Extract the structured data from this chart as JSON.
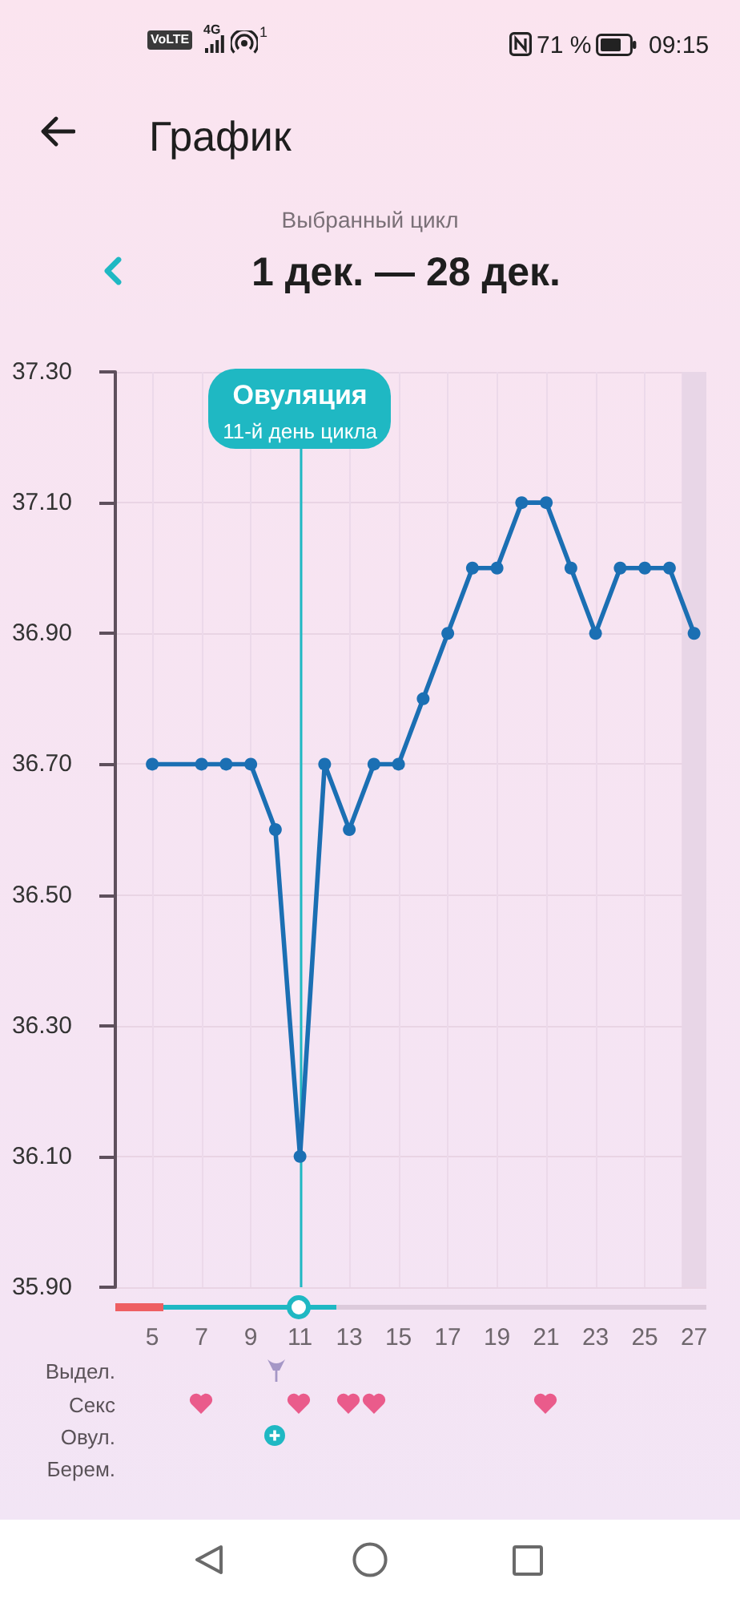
{
  "chart_data": {
    "type": "line",
    "title": "График",
    "subtitle": "Выбранный цикл",
    "annotations": [
      "VoLTE",
      "4G",
      "1",
      "71 %",
      "09:15",
      "1 дек. — 28 дек.",
      {
        "text": "11-й день цикла",
        "x": 11,
        "y": 37.21
      },
      "Выдел.",
      "Секс",
      "Овул.",
      "Берем."
    ],
    "x": [
      5,
      7,
      8,
      9,
      10,
      11,
      12,
      13,
      14,
      15,
      16,
      17,
      18,
      19,
      20,
      21,
      22,
      23,
      24,
      25,
      26,
      27
    ],
    "series": [
      {
        "color": "#1b6fb3",
        "values": [
          36.7,
          36.7,
          36.7,
          36.7,
          36.6,
          36.1,
          36.7,
          36.6,
          36.7,
          36.7,
          36.8,
          36.9,
          37.0,
          37.0,
          37.1,
          37.1,
          37.0,
          36.9,
          37.0,
          37.0,
          37.0,
          36.9
        ]
      }
    ],
    "xlim": [
      3.5,
      27.5
    ],
    "xticks": [
      5,
      7,
      9,
      11,
      13,
      15,
      17,
      19,
      21,
      23,
      25,
      27
    ],
    "ylim": [
      35.9,
      37.3
    ],
    "yticks": [
      {
        "value": 35.9,
        "label": "35.90"
      },
      {
        "value": 36.1,
        "label": "36.10"
      },
      {
        "value": 36.3,
        "label": "36.30"
      },
      {
        "value": 36.5,
        "label": "36.50"
      },
      {
        "value": 36.7,
        "label": "36.70"
      },
      {
        "value": 36.9,
        "label": "36.90"
      },
      {
        "value": 37.1,
        "label": "37.10"
      },
      {
        "value": 37.3,
        "label": "37.30"
      }
    ],
    "ref_lines": [
      {
        "axis": "x",
        "value": 11,
        "label": "Овуляция",
        "color": "#1fb8c3"
      }
    ],
    "bands": [
      {
        "axis": "x",
        "from": 26.5,
        "to": 27.5,
        "color": "#e8d6e7"
      }
    ],
    "grid": true,
    "marker": "circle",
    "line_style": "solid"
  }
}
